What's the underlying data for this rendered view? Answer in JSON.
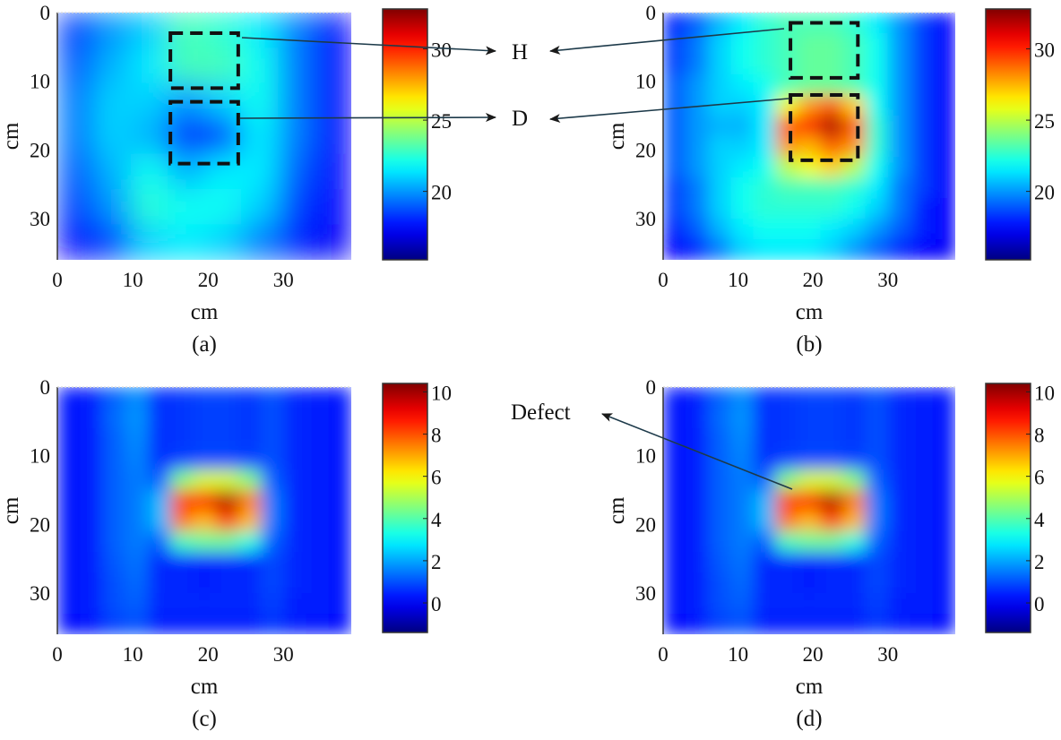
{
  "chart_data": [
    {
      "type": "heatmap",
      "caption": "(a)",
      "xlabel": "cm",
      "ylabel": "cm",
      "xlim": [
        0,
        39
      ],
      "ylim": [
        0,
        36
      ],
      "y_reversed": true,
      "xticks": [
        "0",
        "10",
        "20",
        "30"
      ],
      "yticks": [
        "0",
        "10",
        "20",
        "30"
      ],
      "colormap": "jet",
      "colorbar": {
        "range": [
          15.2,
          32.8
        ],
        "ticks": [
          20,
          25,
          30
        ]
      },
      "values": [
        [
          18.5,
          20,
          21,
          23,
          22.5,
          21.5,
          19.5,
          17.5
        ],
        [
          19,
          20.5,
          21.5,
          23,
          23,
          22,
          19.5,
          17.5
        ],
        [
          19.5,
          21,
          21,
          20,
          21,
          22,
          19.5,
          17.5
        ],
        [
          19.5,
          21,
          20.5,
          17.8,
          18.3,
          21.5,
          19.5,
          17.5
        ],
        [
          19,
          20.5,
          22,
          20.5,
          21.5,
          21.5,
          19,
          17.5
        ],
        [
          18.5,
          20,
          22.5,
          22,
          22,
          21,
          18.5,
          17.5
        ],
        [
          17.5,
          18.5,
          21,
          21.5,
          21,
          19.5,
          18,
          17.3
        ]
      ],
      "annotations": [
        {
          "label": "H",
          "box": [
            15,
            3,
            24,
            11
          ]
        },
        {
          "label": "D",
          "box": [
            15,
            13,
            24,
            22
          ]
        }
      ]
    },
    {
      "type": "heatmap",
      "caption": "(b)",
      "xlabel": "cm",
      "ylabel": "cm",
      "xlim": [
        0,
        39
      ],
      "ylim": [
        0,
        36
      ],
      "y_reversed": true,
      "xticks": [
        "0",
        "10",
        "20",
        "30"
      ],
      "yticks": [
        "0",
        "10",
        "20",
        "30"
      ],
      "colormap": "jet",
      "colorbar": {
        "range": [
          15.2,
          32.8
        ],
        "ticks": [
          20,
          25,
          30
        ]
      },
      "values": [
        [
          18,
          19,
          20.5,
          21.5,
          22.5,
          23,
          23,
          23,
          22.5,
          21.5,
          20,
          18.5,
          17.5
        ],
        [
          18.5,
          19.5,
          21,
          22,
          22.5,
          23,
          23.5,
          23.5,
          23,
          22,
          20,
          18.5,
          17.5
        ],
        [
          18.5,
          19.5,
          21,
          22,
          22.5,
          23,
          23.5,
          23.5,
          23,
          22,
          20,
          18.5,
          17.5
        ],
        [
          19,
          20,
          21,
          21.5,
          22,
          23,
          23.5,
          23.5,
          23,
          22,
          20,
          18.5,
          17.5
        ],
        [
          19,
          20,
          21,
          21,
          21.5,
          26,
          28,
          29,
          27,
          22,
          20,
          18.5,
          17.5
        ],
        [
          19,
          20,
          20.5,
          20.5,
          21.5,
          29,
          30,
          32,
          29,
          22.5,
          20,
          18.5,
          17.5
        ],
        [
          19,
          20,
          21,
          21,
          21.5,
          28,
          27.5,
          29,
          28,
          22.5,
          20,
          18.5,
          17.5
        ],
        [
          19,
          20,
          21,
          21.5,
          22,
          25,
          26,
          27,
          25,
          22,
          20,
          18.5,
          17.5
        ],
        [
          18.5,
          19.5,
          21,
          22,
          22.5,
          23,
          23,
          23,
          22.5,
          21.5,
          19.5,
          18.5,
          17.5
        ],
        [
          18.5,
          19.5,
          21,
          22,
          22.5,
          22.5,
          22.5,
          22.5,
          22,
          21,
          19.5,
          18,
          17.5
        ],
        [
          18,
          19,
          20.5,
          21.5,
          22,
          22,
          22,
          21.5,
          21,
          20,
          19,
          18,
          17.5
        ],
        [
          17.5,
          18,
          19.5,
          21,
          21.5,
          21.5,
          21.5,
          21,
          20,
          19,
          18,
          17.5,
          17.3
        ]
      ],
      "annotations": [
        {
          "label": "H",
          "box": [
            17,
            1.5,
            26,
            9.5
          ]
        },
        {
          "label": "D",
          "box": [
            17,
            12,
            26,
            21.5
          ]
        }
      ]
    },
    {
      "type": "heatmap",
      "caption": "(c)",
      "xlabel": "cm",
      "ylabel": "cm",
      "xlim": [
        0,
        39
      ],
      "ylim": [
        0,
        36
      ],
      "y_reversed": true,
      "xticks": [
        "0",
        "10",
        "20",
        "30"
      ],
      "yticks": [
        "0",
        "10",
        "20",
        "30"
      ],
      "colormap": "jet",
      "colorbar": {
        "range": [
          -1.4,
          10.4
        ],
        "ticks": [
          0,
          2,
          4,
          6,
          8,
          10
        ]
      },
      "values": [
        [
          0.3,
          0.4,
          1.2,
          1.7,
          0.6,
          0.7,
          0.8,
          0.8,
          0.7,
          1.0,
          0.5,
          0.4,
          0.3
        ],
        [
          0.3,
          0.4,
          1.3,
          1.8,
          0.6,
          0.7,
          0.8,
          0.8,
          0.7,
          1.0,
          0.5,
          0.4,
          0.3
        ],
        [
          0.3,
          0.4,
          1.2,
          1.7,
          0.6,
          0.7,
          0.8,
          0.8,
          0.7,
          1.0,
          0.5,
          0.4,
          0.3
        ],
        [
          0.3,
          0.4,
          1.2,
          1.6,
          0.6,
          0.8,
          0.9,
          0.9,
          0.8,
          1.0,
          0.5,
          0.4,
          0.3
        ],
        [
          0.3,
          0.4,
          1.2,
          1.5,
          1.2,
          4.5,
          5.5,
          5.5,
          4.5,
          1.2,
          0.5,
          0.4,
          0.3
        ],
        [
          0.3,
          0.4,
          1.2,
          1.5,
          2.2,
          8.2,
          8.6,
          9.8,
          7.5,
          1.5,
          0.5,
          0.4,
          0.3
        ],
        [
          0.3,
          0.4,
          1.2,
          1.5,
          2.2,
          7.6,
          6.8,
          8.2,
          6.8,
          1.5,
          0.5,
          0.4,
          0.3
        ],
        [
          0.3,
          0.4,
          1.2,
          1.5,
          1.2,
          3.8,
          4.2,
          4.2,
          3.4,
          1.2,
          0.5,
          0.4,
          0.3
        ],
        [
          0.3,
          0.4,
          1.1,
          1.4,
          0.5,
          0.5,
          0.4,
          0.5,
          0.5,
          0.9,
          0.5,
          0.4,
          0.3
        ],
        [
          0.3,
          0.4,
          1.0,
          1.3,
          0.5,
          0.5,
          0.4,
          0.5,
          0.5,
          0.9,
          0.5,
          0.4,
          0.3
        ],
        [
          0.3,
          0.4,
          1.0,
          1.2,
          0.5,
          0.5,
          0.5,
          0.5,
          0.5,
          0.8,
          0.4,
          0.4,
          0.3
        ],
        [
          0.2,
          0.3,
          0.8,
          1.0,
          0.4,
          0.4,
          0.4,
          0.4,
          0.4,
          0.7,
          0.4,
          0.3,
          0.2
        ]
      ]
    },
    {
      "type": "heatmap",
      "caption": "(d)",
      "xlabel": "cm",
      "ylabel": "cm",
      "xlim": [
        0,
        39
      ],
      "ylim": [
        0,
        36
      ],
      "y_reversed": true,
      "xticks": [
        "0",
        "10",
        "20",
        "30"
      ],
      "yticks": [
        "0",
        "10",
        "20",
        "30"
      ],
      "colormap": "jet",
      "colorbar": {
        "range": [
          -1.4,
          10.4
        ],
        "ticks": [
          0,
          2,
          4,
          6,
          8,
          10
        ]
      },
      "values": [
        [
          0.3,
          0.4,
          1.2,
          1.7,
          0.6,
          0.7,
          0.8,
          0.8,
          0.7,
          1.0,
          0.5,
          0.4,
          0.3
        ],
        [
          0.3,
          0.4,
          1.3,
          1.8,
          0.6,
          0.7,
          0.8,
          0.8,
          0.7,
          1.0,
          0.5,
          0.4,
          0.3
        ],
        [
          0.3,
          0.4,
          1.2,
          1.7,
          0.6,
          0.7,
          0.8,
          0.8,
          0.7,
          1.0,
          0.5,
          0.4,
          0.3
        ],
        [
          0.3,
          0.4,
          1.2,
          1.6,
          0.6,
          0.8,
          0.9,
          0.9,
          0.8,
          1.0,
          0.5,
          0.4,
          0.3
        ],
        [
          0.3,
          0.4,
          1.2,
          1.5,
          1.2,
          4.5,
          5.5,
          5.5,
          4.5,
          1.2,
          0.5,
          0.4,
          0.3
        ],
        [
          0.3,
          0.4,
          1.2,
          1.5,
          2.2,
          8.2,
          8.6,
          9.8,
          7.5,
          1.5,
          0.5,
          0.4,
          0.3
        ],
        [
          0.3,
          0.4,
          1.2,
          1.5,
          2.2,
          7.6,
          6.8,
          8.2,
          6.8,
          1.5,
          0.5,
          0.4,
          0.3
        ],
        [
          0.3,
          0.4,
          1.2,
          1.5,
          1.2,
          3.8,
          4.2,
          4.2,
          3.4,
          1.2,
          0.5,
          0.4,
          0.3
        ],
        [
          0.3,
          0.4,
          1.1,
          1.4,
          0.5,
          0.5,
          0.4,
          0.5,
          0.5,
          0.9,
          0.5,
          0.4,
          0.3
        ],
        [
          0.3,
          0.4,
          1.0,
          1.3,
          0.5,
          0.5,
          0.4,
          0.5,
          0.5,
          0.9,
          0.5,
          0.4,
          0.3
        ],
        [
          0.3,
          0.4,
          1.0,
          1.2,
          0.5,
          0.5,
          0.5,
          0.5,
          0.5,
          0.8,
          0.4,
          0.4,
          0.3
        ],
        [
          0.2,
          0.3,
          0.8,
          1.0,
          0.4,
          0.4,
          0.4,
          0.4,
          0.4,
          0.7,
          0.4,
          0.3,
          0.2
        ]
      ],
      "annotations": [
        {
          "label": "Defect",
          "point": [
            17,
            15
          ]
        }
      ]
    }
  ]
}
